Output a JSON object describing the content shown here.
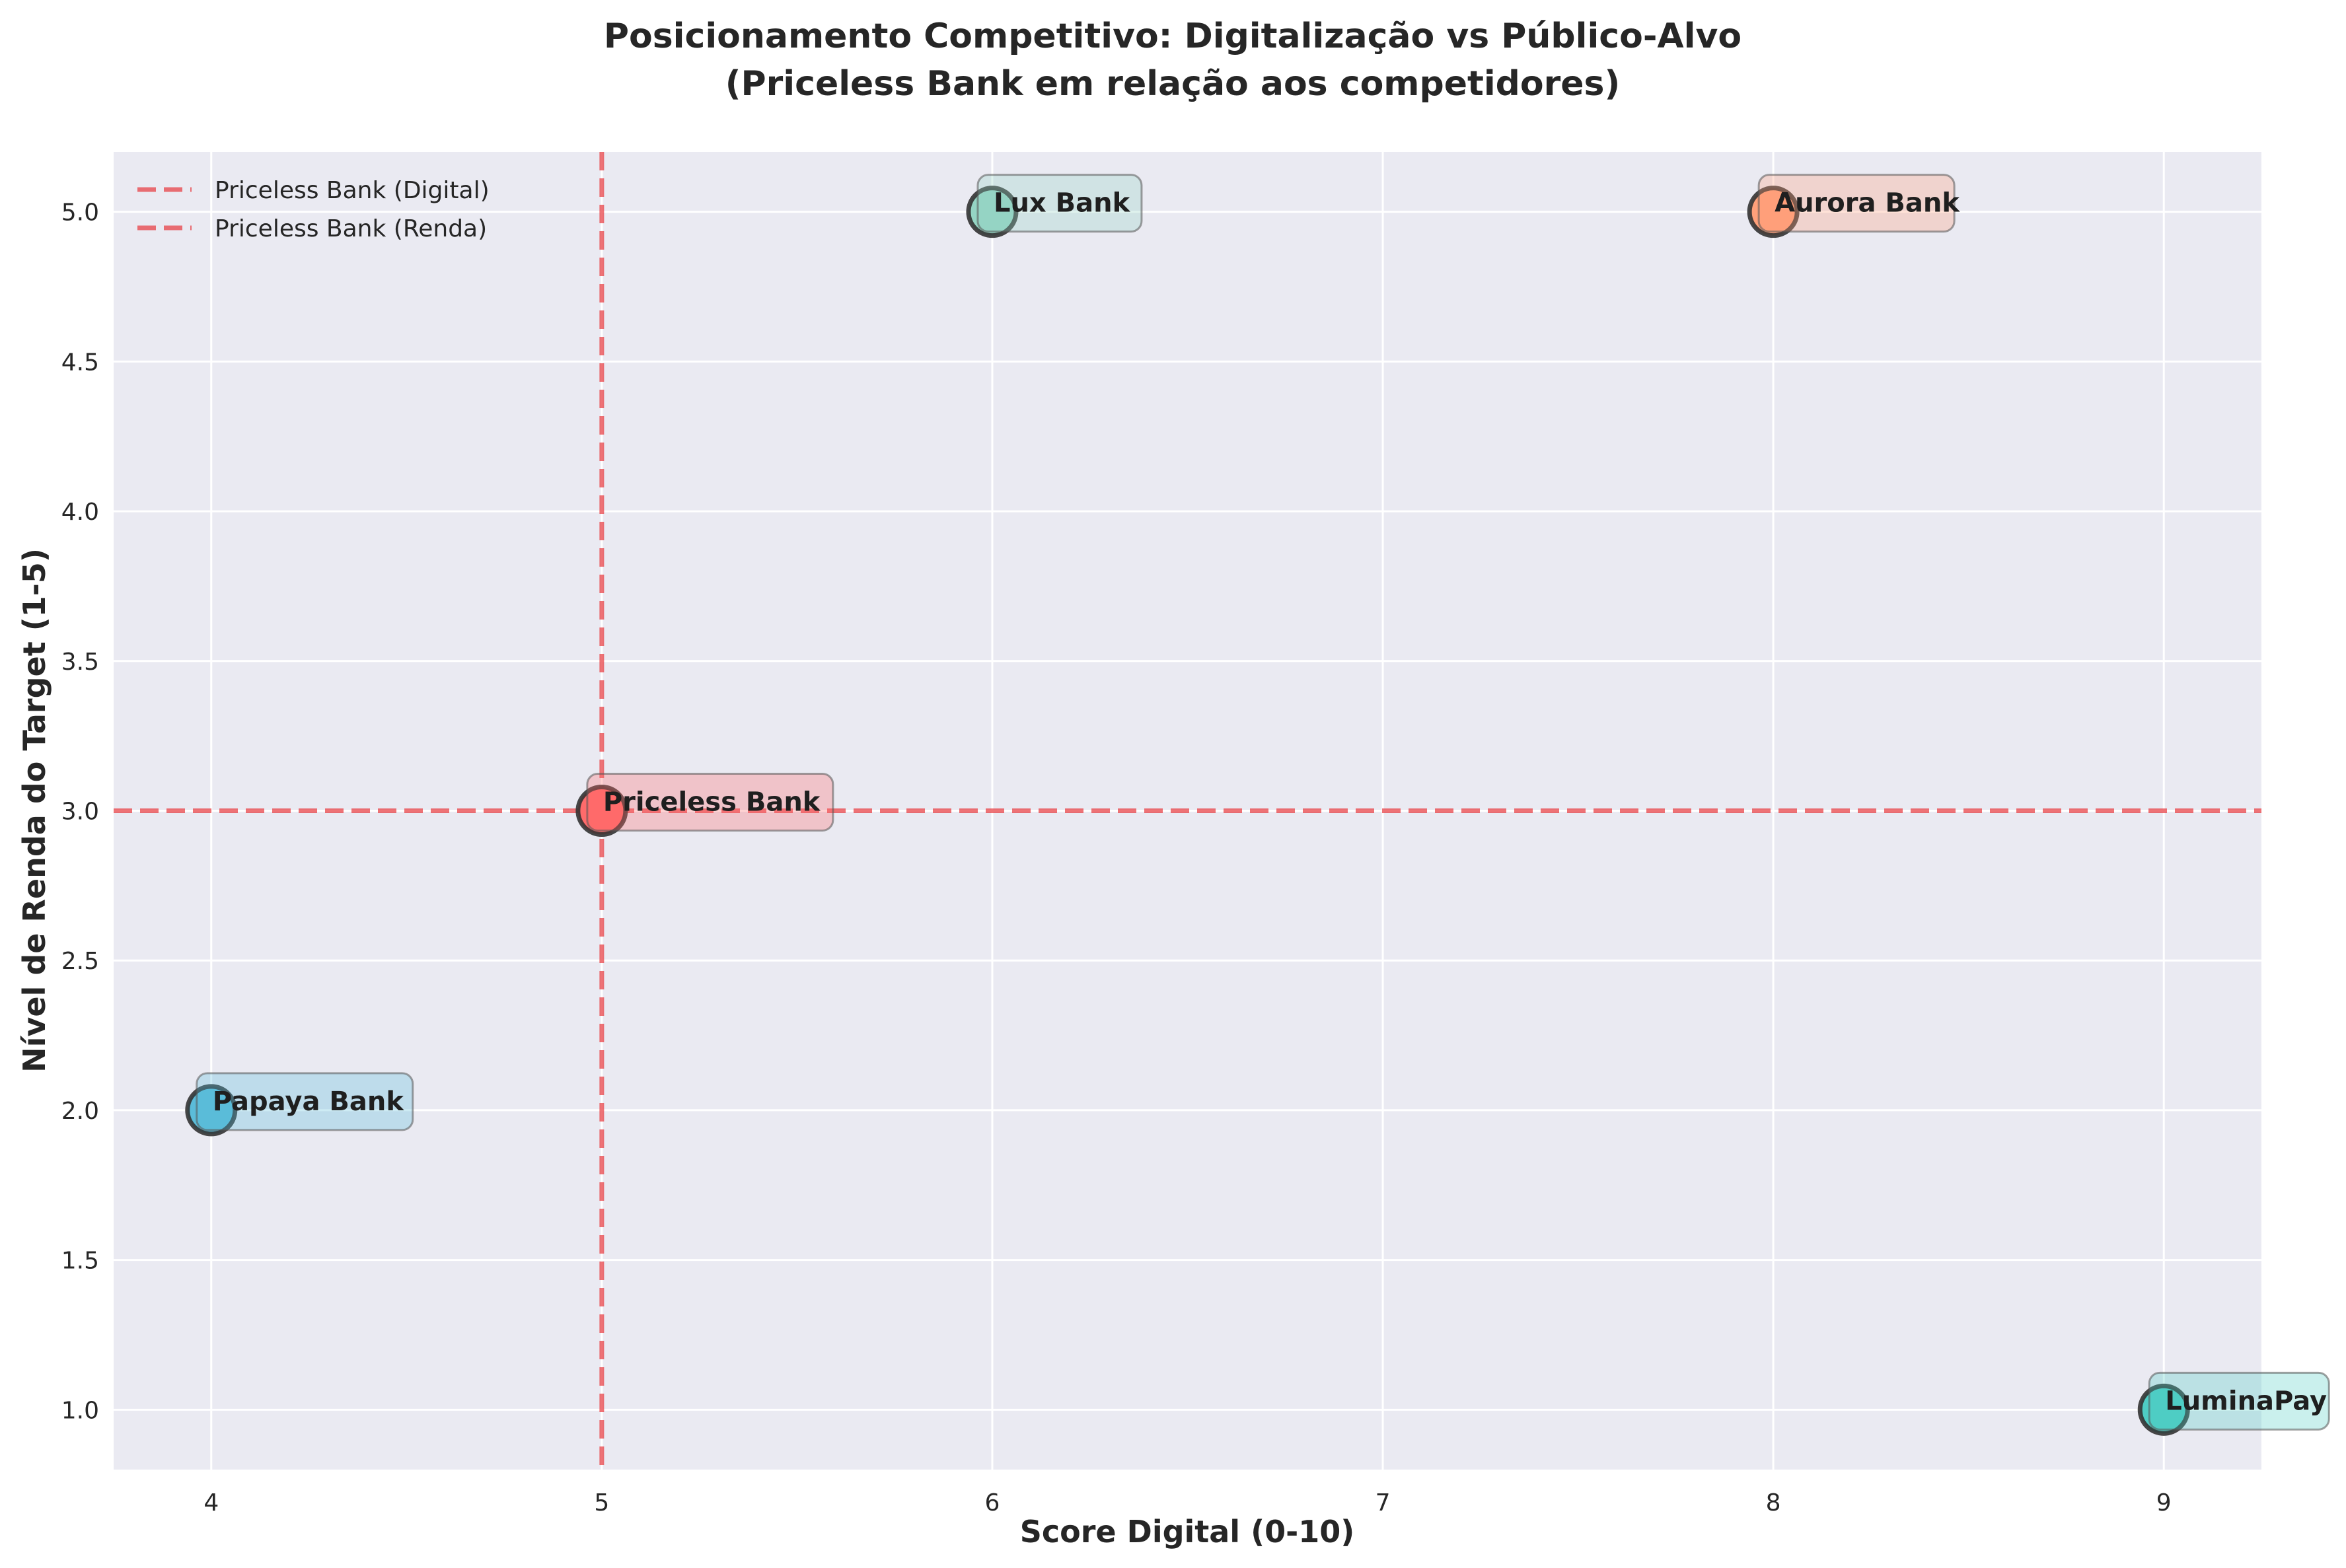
{
  "chart_data": {
    "type": "scatter",
    "title": "Posicionamento Competitivo: Digitalização vs Público-Alvo",
    "subtitle": "(Priceless Bank em relação aos competidores)",
    "xlabel": "Score Digital (0-10)",
    "ylabel": "Nível de Renda do Target (1-5)",
    "xlim": [
      3.75,
      9.25
    ],
    "ylim": [
      0.8,
      5.2
    ],
    "xticks": [
      "4",
      "5",
      "6",
      "7",
      "8",
      "9"
    ],
    "yticks": [
      "1.0",
      "1.5",
      "2.0",
      "2.5",
      "3.0",
      "3.5",
      "4.0",
      "4.5",
      "5.0"
    ],
    "grid": true,
    "legend_position": "upper-left",
    "points": [
      {
        "name": "Priceless Bank",
        "x": 5,
        "y": 3,
        "color": "#FF6B6B"
      },
      {
        "name": "Lux Bank",
        "x": 6,
        "y": 5,
        "color": "#95D5C4"
      },
      {
        "name": "Aurora Bank",
        "x": 8,
        "y": 5,
        "color": "#FFA07A"
      },
      {
        "name": "Papaya Bank",
        "x": 4,
        "y": 2,
        "color": "#5BBCD9"
      },
      {
        "name": "LuminaPay",
        "x": 9,
        "y": 1,
        "color": "#4ECDC4"
      }
    ],
    "reference_lines": [
      {
        "label": "Priceless Bank (Digital)",
        "orientation": "vertical",
        "value": 5,
        "color": "#E8383D"
      },
      {
        "label": "Priceless Bank (Renda)",
        "orientation": "horizontal",
        "value": 3,
        "color": "#E8383D"
      }
    ]
  }
}
